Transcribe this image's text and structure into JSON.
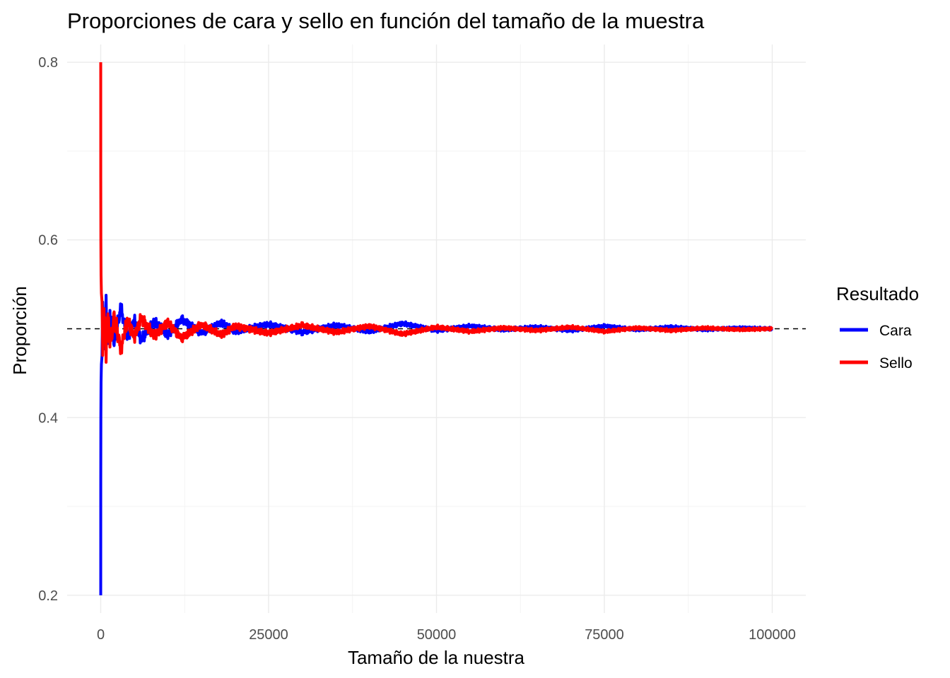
{
  "chart_data": {
    "type": "line",
    "title": "Proporciones de cara y sello en función del tamaño de la muestra",
    "xlabel": "Tamaño de la nuestra",
    "ylabel": "Proporción",
    "xlim": [
      -5000,
      105000
    ],
    "ylim": [
      0.18,
      0.82
    ],
    "x_ticks": [
      0,
      25000,
      50000,
      75000,
      100000
    ],
    "x_tick_labels": [
      "0",
      "25000",
      "50000",
      "75000",
      "100000"
    ],
    "y_ticks": [
      0.2,
      0.4,
      0.6,
      0.8
    ],
    "y_tick_labels": [
      "0.2",
      "0.4",
      "0.6",
      "0.8"
    ],
    "grid": true,
    "reference_line": {
      "y": 0.5,
      "style": "dashed",
      "color": "#000000"
    },
    "legend": {
      "title": "Resultado",
      "position": "right",
      "entries": [
        {
          "label": "Cara",
          "color": "#0000ff"
        },
        {
          "label": "Sello",
          "color": "#ff0000"
        }
      ]
    },
    "series": [
      {
        "name": "Cara",
        "color": "#0000ff",
        "x": [
          1,
          5,
          20,
          50,
          100,
          200,
          300,
          500,
          800,
          1000,
          1500,
          2000,
          3000,
          4000,
          5000,
          6000,
          8000,
          10000,
          12000,
          15000,
          18000,
          20000,
          25000,
          30000,
          35000,
          40000,
          45000,
          50000,
          55000,
          60000,
          65000,
          70000,
          75000,
          80000,
          85000,
          90000,
          95000,
          100000
        ],
        "y": [
          0.2,
          0.33,
          0.4,
          0.44,
          0.46,
          0.47,
          0.53,
          0.48,
          0.52,
          0.49,
          0.515,
          0.487,
          0.522,
          0.49,
          0.51,
          0.488,
          0.508,
          0.493,
          0.511,
          0.495,
          0.507,
          0.497,
          0.505,
          0.496,
          0.504,
          0.497,
          0.506,
          0.498,
          0.503,
          0.499,
          0.502,
          0.498,
          0.503,
          0.499,
          0.502,
          0.499,
          0.501,
          0.5
        ]
      },
      {
        "name": "Sello",
        "color": "#ff0000",
        "x": [
          1,
          5,
          20,
          50,
          100,
          200,
          300,
          500,
          800,
          1000,
          1500,
          2000,
          3000,
          4000,
          5000,
          6000,
          8000,
          10000,
          12000,
          15000,
          18000,
          20000,
          25000,
          30000,
          35000,
          40000,
          45000,
          50000,
          55000,
          60000,
          65000,
          70000,
          75000,
          80000,
          85000,
          90000,
          95000,
          100000
        ],
        "y": [
          0.8,
          0.67,
          0.6,
          0.56,
          0.54,
          0.53,
          0.47,
          0.52,
          0.48,
          0.51,
          0.485,
          0.513,
          0.478,
          0.51,
          0.49,
          0.512,
          0.492,
          0.507,
          0.489,
          0.505,
          0.493,
          0.503,
          0.495,
          0.504,
          0.496,
          0.503,
          0.494,
          0.502,
          0.497,
          0.501,
          0.498,
          0.502,
          0.497,
          0.501,
          0.498,
          0.501,
          0.499,
          0.5
        ]
      }
    ]
  }
}
